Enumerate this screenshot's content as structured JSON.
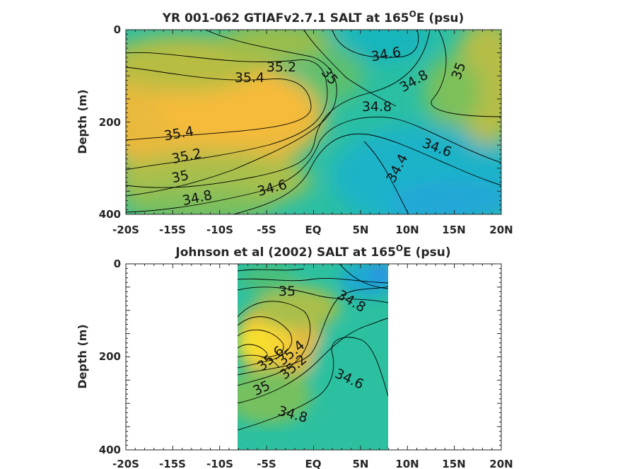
{
  "chart_data": [
    {
      "type": "heatmap",
      "title": "YR 001-062 GTIAFv2.7.1 SALT at 165°E (psu)",
      "title_parts": [
        "YR 001-062 GTIAFv2.7.1 SALT at 165",
        "O",
        "E (psu)"
      ],
      "ylabel": "Depth (m)",
      "xlim": [
        -20,
        20
      ],
      "ylim": [
        0,
        400
      ],
      "x_ticks": [
        -20,
        -15,
        -10,
        -5,
        0,
        5,
        10,
        15,
        20
      ],
      "x_tick_labels": [
        "-20S",
        "-15S",
        "-10S",
        "-5S",
        "EQ",
        "5N",
        "10N",
        "15N",
        "20N"
      ],
      "y_tick_labels": [
        "0",
        "200",
        "400"
      ],
      "y_ticks": [
        0,
        200,
        400
      ],
      "colormap": "parula",
      "contour_labels": [
        {
          "text": "35.4",
          "x": -6.8,
          "y": 100
        },
        {
          "text": "35.2",
          "x": -2.5,
          "y": 80
        },
        {
          "text": "35",
          "x": 1.2,
          "y": 100
        },
        {
          "text": "34.6",
          "x": 7.2,
          "y": 50
        },
        {
          "text": "34.8",
          "x": 10.2,
          "y": 110
        },
        {
          "text": "35",
          "x": 15.5,
          "y": 90
        },
        {
          "text": "34.8",
          "x": 5.5,
          "y": 165
        },
        {
          "text": "35.4",
          "x": -15.0,
          "y": 225
        },
        {
          "text": "35.2",
          "x": -14.2,
          "y": 265
        },
        {
          "text": "35",
          "x": -14.0,
          "y": 315
        },
        {
          "text": "34.8",
          "x": -14.0,
          "y": 365
        },
        {
          "text": "34.6",
          "x": -4.4,
          "y": 340
        },
        {
          "text": "34.6",
          "x": 13.5,
          "y": 255
        },
        {
          "text": "34.4",
          "x": 9.0,
          "y": 300
        }
      ]
    },
    {
      "type": "heatmap",
      "title": "Johnson et al (2002) SALT at 165°E (psu)",
      "title_parts": [
        "Johnson et al (2002) SALT at 165",
        "O",
        "E (psu)"
      ],
      "ylabel": "Depth (m)",
      "xlim": [
        -20,
        20
      ],
      "ylim": [
        0,
        400
      ],
      "data_xlim": [
        -8,
        8
      ],
      "x_ticks": [
        -20,
        -15,
        -10,
        -5,
        0,
        5,
        10,
        15,
        20
      ],
      "x_tick_labels": [
        "-20S",
        "-15S",
        "-10S",
        "-5S",
        "EQ",
        "5N",
        "10N",
        "15N",
        "20N"
      ],
      "y_tick_labels": [
        "0",
        "200",
        "400"
      ],
      "y_ticks": [
        0,
        200,
        400
      ],
      "colormap": "parula",
      "contour_labels": [
        {
          "text": "35",
          "x": -2.1,
          "y": 65
        },
        {
          "text": "34.8",
          "x": 4.8,
          "y": 85
        },
        {
          "text": "35.6",
          "x": -4.0,
          "y": 205
        },
        {
          "text": "35.4",
          "x": -2.2,
          "y": 205
        },
        {
          "text": "35.2",
          "x": -1.5,
          "y": 225
        },
        {
          "text": "34.6",
          "x": 4.4,
          "y": 245
        },
        {
          "text": "35",
          "x": -6.2,
          "y": 270
        },
        {
          "text": "34.8",
          "x": -1.6,
          "y": 330
        }
      ]
    }
  ]
}
